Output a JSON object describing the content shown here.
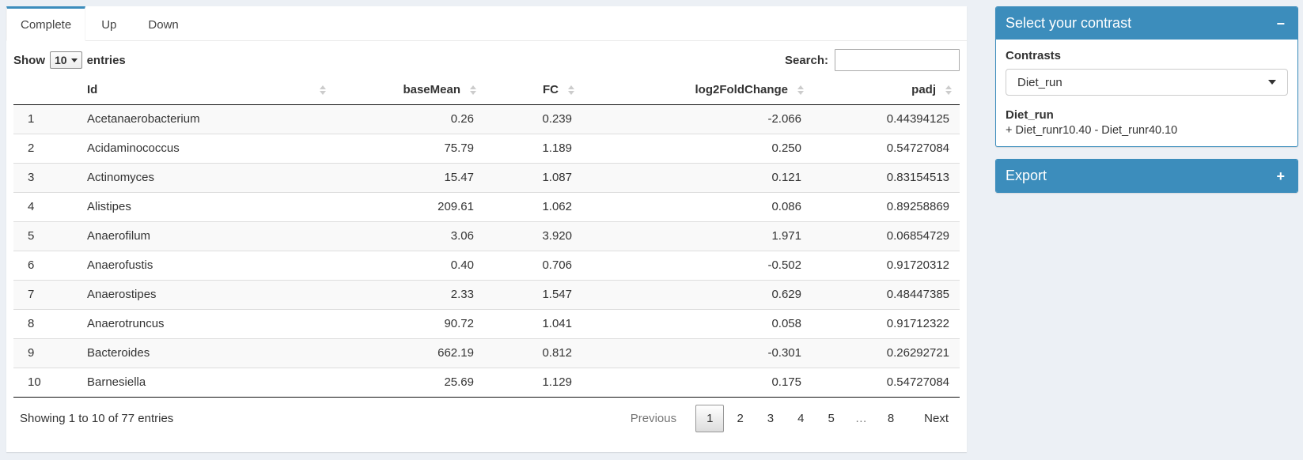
{
  "colors": {
    "primary": "#3c8dbc",
    "page_bg": "#ecf0f5"
  },
  "tabs": [
    {
      "label": "Complete",
      "active": true
    },
    {
      "label": "Up",
      "active": false
    },
    {
      "label": "Down",
      "active": false
    }
  ],
  "table_controls": {
    "show_label": "Show",
    "page_length": "10",
    "entries_label": "entries",
    "search_label": "Search:",
    "search_value": ""
  },
  "table": {
    "columns": [
      "Id",
      "baseMean",
      "FC",
      "log2FoldChange",
      "padj"
    ],
    "rows": [
      {
        "n": "1",
        "id": "Acetanaerobacterium",
        "baseMean": "0.26",
        "fc": "0.239",
        "log2FoldChange": "-2.066",
        "padj": "0.44394125"
      },
      {
        "n": "2",
        "id": "Acidaminococcus",
        "baseMean": "75.79",
        "fc": "1.189",
        "log2FoldChange": "0.250",
        "padj": "0.54727084"
      },
      {
        "n": "3",
        "id": "Actinomyces",
        "baseMean": "15.47",
        "fc": "1.087",
        "log2FoldChange": "0.121",
        "padj": "0.83154513"
      },
      {
        "n": "4",
        "id": "Alistipes",
        "baseMean": "209.61",
        "fc": "1.062",
        "log2FoldChange": "0.086",
        "padj": "0.89258869"
      },
      {
        "n": "5",
        "id": "Anaerofilum",
        "baseMean": "3.06",
        "fc": "3.920",
        "log2FoldChange": "1.971",
        "padj": "0.06854729"
      },
      {
        "n": "6",
        "id": "Anaerofustis",
        "baseMean": "0.40",
        "fc": "0.706",
        "log2FoldChange": "-0.502",
        "padj": "0.91720312"
      },
      {
        "n": "7",
        "id": "Anaerostipes",
        "baseMean": "2.33",
        "fc": "1.547",
        "log2FoldChange": "0.629",
        "padj": "0.48447385"
      },
      {
        "n": "8",
        "id": "Anaerotruncus",
        "baseMean": "90.72",
        "fc": "1.041",
        "log2FoldChange": "0.058",
        "padj": "0.91712322"
      },
      {
        "n": "9",
        "id": "Bacteroides",
        "baseMean": "662.19",
        "fc": "0.812",
        "log2FoldChange": "-0.301",
        "padj": "0.26292721"
      },
      {
        "n": "10",
        "id": "Barnesiella",
        "baseMean": "25.69",
        "fc": "1.129",
        "log2FoldChange": "0.175",
        "padj": "0.54727084"
      }
    ]
  },
  "footer": {
    "info": "Showing 1 to 10 of 77 entries",
    "pagination": {
      "previous": "Previous",
      "pages": [
        "1",
        "2",
        "3",
        "4",
        "5",
        "…",
        "8"
      ],
      "active_page": "1",
      "next": "Next"
    }
  },
  "sidebar": {
    "contrast_box": {
      "title": "Select your contrast",
      "collapse_icon": "−",
      "contrasts_label": "Contrasts",
      "selected_contrast": "Diet_run",
      "contrast_name": "Diet_run",
      "contrast_formula": "+ Diet_runr10.40 - Diet_runr40.10"
    },
    "export_box": {
      "title": "Export",
      "expand_icon": "+"
    }
  }
}
